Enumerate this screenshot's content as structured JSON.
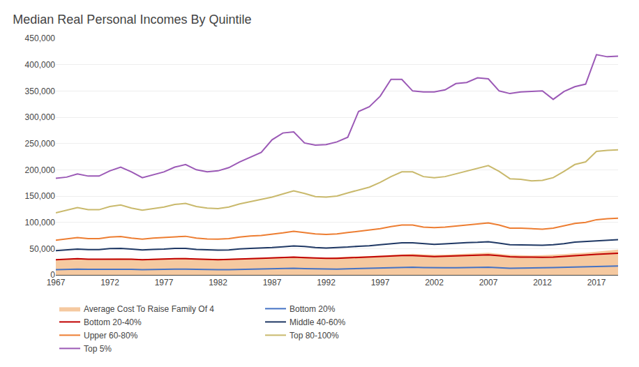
{
  "chart_data": {
    "type": "line",
    "title": "Median Real Personal Incomes By Quintile",
    "x": [
      1967,
      1968,
      1969,
      1970,
      1971,
      1972,
      1973,
      1974,
      1975,
      1976,
      1977,
      1978,
      1979,
      1980,
      1981,
      1982,
      1983,
      1984,
      1985,
      1986,
      1987,
      1988,
      1989,
      1990,
      1991,
      1992,
      1993,
      1994,
      1995,
      1996,
      1997,
      1998,
      1999,
      2000,
      2001,
      2002,
      2003,
      2004,
      2005,
      2006,
      2007,
      2008,
      2009,
      2010,
      2011,
      2012,
      2013,
      2014,
      2015,
      2016,
      2017,
      2018,
      2019
    ],
    "series": [
      {
        "name": "Average Cost To Raise Family Of 4",
        "type": "area",
        "color": "#f5c9a0",
        "values": [
          28000,
          29000,
          30000,
          30000,
          30500,
          31000,
          31500,
          31000,
          30000,
          31000,
          31500,
          32000,
          32500,
          31000,
          30500,
          30000,
          30500,
          31500,
          32000,
          32500,
          33000,
          34000,
          35000,
          34500,
          33000,
          33000,
          33500,
          34500,
          35500,
          36000,
          37000,
          38000,
          39000,
          40000,
          39000,
          38000,
          38500,
          39500,
          40500,
          41500,
          42000,
          40000,
          38000,
          37500,
          37000,
          37500,
          38000,
          39500,
          41000,
          42000,
          44000,
          46000,
          48000
        ]
      },
      {
        "name": "Bottom 20%",
        "type": "line",
        "color": "#4472c4",
        "values": [
          10000,
          10500,
          11000,
          10500,
          10500,
          11000,
          11000,
          10500,
          10000,
          10500,
          10500,
          11000,
          11000,
          10500,
          10000,
          10000,
          10000,
          10500,
          11000,
          11000,
          11500,
          12000,
          12500,
          12000,
          11500,
          11000,
          11000,
          11500,
          12000,
          12500,
          13000,
          14000,
          14500,
          14500,
          14000,
          13500,
          13500,
          13500,
          14000,
          14000,
          14500,
          13500,
          12500,
          13000,
          13000,
          13500,
          14000,
          14500,
          15000,
          15500,
          16000,
          16500,
          17000
        ]
      },
      {
        "name": "Bottom 20-40%",
        "type": "line",
        "color": "#c00000",
        "values": [
          29000,
          30000,
          31000,
          30000,
          30000,
          31000,
          31000,
          30000,
          29000,
          30000,
          30000,
          31000,
          31000,
          30000,
          29500,
          29000,
          29500,
          30500,
          31000,
          31500,
          32000,
          33000,
          34000,
          33000,
          32000,
          31500,
          31500,
          32500,
          33500,
          34000,
          35000,
          36000,
          37000,
          37000,
          36000,
          35000,
          35500,
          36500,
          37000,
          37500,
          38000,
          36500,
          34500,
          34000,
          33500,
          33500,
          34000,
          35500,
          37000,
          37500,
          39000,
          40000,
          41000
        ]
      },
      {
        "name": "Middle 40-60%",
        "type": "line",
        "color": "#1f3864",
        "values": [
          46000,
          47500,
          49000,
          48000,
          48000,
          50000,
          50500,
          49000,
          47500,
          48500,
          49000,
          50500,
          50500,
          48500,
          47500,
          47000,
          47500,
          49500,
          50500,
          51000,
          52000,
          53500,
          55000,
          54000,
          52000,
          51000,
          51500,
          53000,
          54500,
          55500,
          57500,
          59500,
          61000,
          61000,
          59000,
          58000,
          59000,
          60500,
          61500,
          62000,
          63000,
          60500,
          57500,
          57000,
          56500,
          56500,
          57500,
          59500,
          62500,
          63500,
          65000,
          66000,
          67000
        ]
      },
      {
        "name": "Upper 60-80%",
        "type": "line",
        "color": "#ed7d31",
        "values": [
          66000,
          68500,
          71000,
          69000,
          69000,
          72000,
          73000,
          70000,
          68000,
          70000,
          71000,
          73000,
          73500,
          70000,
          68500,
          68000,
          69000,
          72000,
          74000,
          75000,
          77000,
          80000,
          83000,
          81000,
          78000,
          77000,
          78000,
          80500,
          83000,
          85000,
          88000,
          92000,
          95000,
          95000,
          91000,
          90000,
          91000,
          93000,
          95000,
          97000,
          99000,
          95000,
          89000,
          89000,
          87500,
          87000,
          89000,
          93000,
          98000,
          100000,
          105000,
          107000,
          108000
        ]
      },
      {
        "name": "Top 80-100%",
        "type": "line",
        "color": "#c9b96c",
        "values": [
          118000,
          123000,
          128000,
          124000,
          124000,
          130000,
          133000,
          127000,
          123000,
          126000,
          129000,
          134000,
          136000,
          130000,
          127000,
          126000,
          129000,
          135000,
          139000,
          143000,
          148000,
          154000,
          160000,
          155000,
          149000,
          148000,
          150000,
          156000,
          162000,
          167000,
          176000,
          187000,
          196000,
          196000,
          187000,
          185000,
          187000,
          192000,
          197000,
          203000,
          208000,
          197000,
          183000,
          182000,
          179000,
          180000,
          185000,
          197000,
          210000,
          215000,
          235000,
          237000,
          238000
        ]
      },
      {
        "name": "Top 5%",
        "type": "line",
        "color": "#9b59b6",
        "values": [
          184000,
          186000,
          192000,
          188000,
          188000,
          198000,
          205000,
          196000,
          185000,
          190000,
          196000,
          205000,
          210000,
          200000,
          196000,
          198000,
          204000,
          215000,
          224000,
          233000,
          257000,
          270000,
          272000,
          251000,
          247000,
          248000,
          253000,
          262000,
          311000,
          320000,
          340000,
          372000,
          372000,
          350000,
          348000,
          348000,
          352000,
          364000,
          366000,
          375000,
          373000,
          350000,
          345000,
          348000,
          349000,
          350000,
          334000,
          349000,
          358000,
          363000,
          419000,
          415000,
          416000
        ]
      }
    ],
    "xlim": [
      1967,
      2019
    ],
    "xticks": [
      1967,
      1972,
      1977,
      1982,
      1987,
      1992,
      1997,
      2002,
      2007,
      2012,
      2017
    ],
    "ylim": [
      0,
      450000
    ],
    "yticks": [
      0,
      {
        "value": 50000,
        "label": "50,000"
      },
      {
        "value": 100000,
        "label": "100,000"
      },
      {
        "value": 150000,
        "label": "150,000"
      },
      {
        "value": 200000,
        "label": "200,000"
      },
      {
        "value": 250000,
        "label": "250,000"
      },
      {
        "value": 300000,
        "label": "300,000"
      },
      {
        "value": 350000,
        "label": "350,000"
      },
      {
        "value": 400000,
        "label": "400,000"
      },
      {
        "value": 450000,
        "label": "450,000"
      }
    ],
    "grid": "y",
    "legend": "bottom"
  }
}
